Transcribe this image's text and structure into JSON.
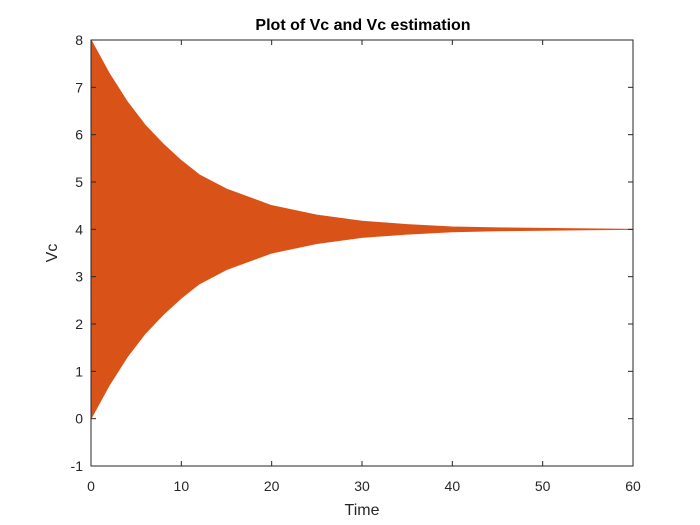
{
  "chart_data": {
    "type": "area",
    "title": "Plot of Vc and Vc estimation",
    "xlabel": "Time",
    "ylabel": "Vc",
    "xlim": [
      0,
      60
    ],
    "ylim": [
      -1,
      8
    ],
    "xticks": [
      "0",
      "10",
      "20",
      "30",
      "40",
      "50",
      "60"
    ],
    "yticks": [
      "-1",
      "0",
      "1",
      "2",
      "3",
      "4",
      "5",
      "6",
      "7",
      "8"
    ],
    "grid": false,
    "legend": "none",
    "series": [
      {
        "color": "#D95319",
        "x": [
          0,
          2,
          4,
          6,
          8,
          10,
          12,
          15,
          20,
          25,
          30,
          35,
          40,
          45,
          50,
          55,
          60
        ],
        "upper": [
          8.0,
          7.3,
          6.7,
          6.2,
          5.8,
          5.45,
          5.15,
          4.85,
          4.5,
          4.3,
          4.17,
          4.1,
          4.05,
          4.03,
          4.02,
          4.01,
          4.0
        ],
        "lower": [
          0.0,
          0.7,
          1.3,
          1.8,
          2.2,
          2.55,
          2.85,
          3.15,
          3.5,
          3.7,
          3.83,
          3.9,
          3.95,
          3.97,
          3.98,
          3.99,
          4.0
        ]
      }
    ]
  }
}
